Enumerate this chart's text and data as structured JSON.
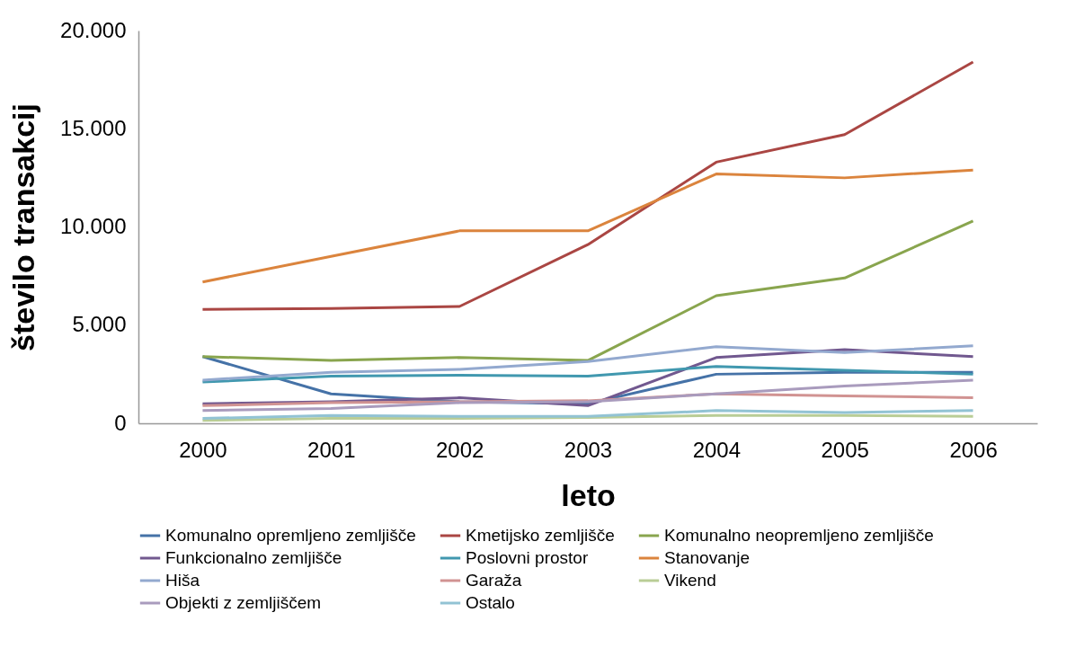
{
  "chart_data": {
    "type": "line",
    "xlabel": "leto",
    "ylabel": "število transakcij",
    "categories": [
      "2000",
      "2001",
      "2002",
      "2003",
      "2004",
      "2005",
      "2006"
    ],
    "ylim": [
      0,
      20000
    ],
    "yticks": [
      0,
      {
        "value": 5000,
        "label": "5.000"
      },
      {
        "value": 10000,
        "label": "10.000"
      },
      {
        "value": 15000,
        "label": "15.000"
      },
      {
        "value": 20000,
        "label": "20.000"
      }
    ],
    "grid": false,
    "legend": "bottom",
    "marker": "none",
    "line_style": "solid",
    "series": [
      {
        "name": "Komunalno opremljeno zemljišče",
        "color": "#4572a7",
        "values": [
          3400,
          1500,
          1100,
          1000,
          2500,
          2600,
          2600
        ]
      },
      {
        "name": "Kmetijsko zemljišče",
        "color": "#aa4643",
        "values": [
          5800,
          5850,
          5950,
          9100,
          13300,
          14700,
          18400
        ]
      },
      {
        "name": "Komunalno neopremljeno zemljišče",
        "color": "#89a54e",
        "values": [
          3400,
          3200,
          3350,
          3200,
          6500,
          7400,
          10300
        ]
      },
      {
        "name": "Funkcionalno zemljišče",
        "color": "#71588f",
        "values": [
          1000,
          1100,
          1300,
          900,
          3350,
          3750,
          3400
        ]
      },
      {
        "name": "Poslovni prostor",
        "color": "#4198af",
        "values": [
          2100,
          2400,
          2450,
          2400,
          2900,
          2700,
          2500
        ]
      },
      {
        "name": "Stanovanje",
        "color": "#db843d",
        "values": [
          7200,
          8500,
          9800,
          9800,
          12700,
          12500,
          12900
        ]
      },
      {
        "name": "Hiša",
        "color": "#93a9cf",
        "values": [
          2200,
          2600,
          2750,
          3150,
          3900,
          3600,
          3950
        ]
      },
      {
        "name": "Garaža",
        "color": "#d19392",
        "values": [
          900,
          1050,
          1100,
          1150,
          1500,
          1400,
          1300
        ]
      },
      {
        "name": "Vikend",
        "color": "#b9cd96",
        "values": [
          150,
          250,
          250,
          300,
          400,
          400,
          350
        ]
      },
      {
        "name": "Objekti z zemljiščem",
        "color": "#a99bbd",
        "values": [
          650,
          750,
          1050,
          1100,
          1500,
          1900,
          2200
        ]
      },
      {
        "name": "Ostalo",
        "color": "#92c3d4",
        "values": [
          250,
          400,
          350,
          350,
          650,
          550,
          650
        ]
      }
    ]
  }
}
